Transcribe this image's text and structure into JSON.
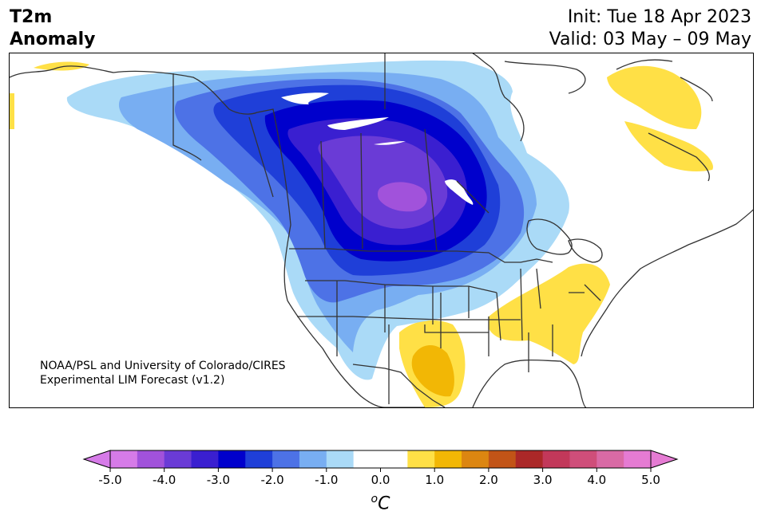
{
  "header": {
    "variable_line1": "T2m",
    "variable_line2": "Anomaly",
    "init": "Init: Tue 18 Apr 2023",
    "valid": "Valid: 03 May – 09 May"
  },
  "map": {
    "credit_line1": "NOAA/PSL and University of Colorado/CIRES",
    "credit_line2": "Experimental LIM Forecast (v1.2)"
  },
  "colorbar": {
    "unit_base": "C",
    "unit_prefix": "o",
    "ticks": [
      "-5.0",
      "-4.0",
      "-3.0",
      "-2.0",
      "-1.0",
      "0.0",
      "1.0",
      "2.0",
      "3.0",
      "4.0",
      "5.0"
    ],
    "levels": [
      -5.0,
      -4.5,
      -4.0,
      -3.5,
      -3.0,
      -2.5,
      -2.0,
      -1.5,
      -1.0,
      -0.5,
      0.5,
      1.0,
      1.5,
      2.0,
      2.5,
      3.0,
      3.5,
      4.0,
      4.5,
      5.0
    ],
    "colors": [
      "#d67be8",
      "#a152db",
      "#6a3bd6",
      "#3a1fd0",
      "#0000cc",
      "#1f3fd8",
      "#4d72e6",
      "#78aef2",
      "#aadaf7",
      "#ffffff",
      "#ffe046",
      "#f2b705",
      "#dc8611",
      "#c25417",
      "#ab2828",
      "#c2385a",
      "#cf4e7a",
      "#d96aa5",
      "#e57bd3"
    ],
    "under_color": "#d67be8",
    "over_color": "#e57bd3"
  }
}
